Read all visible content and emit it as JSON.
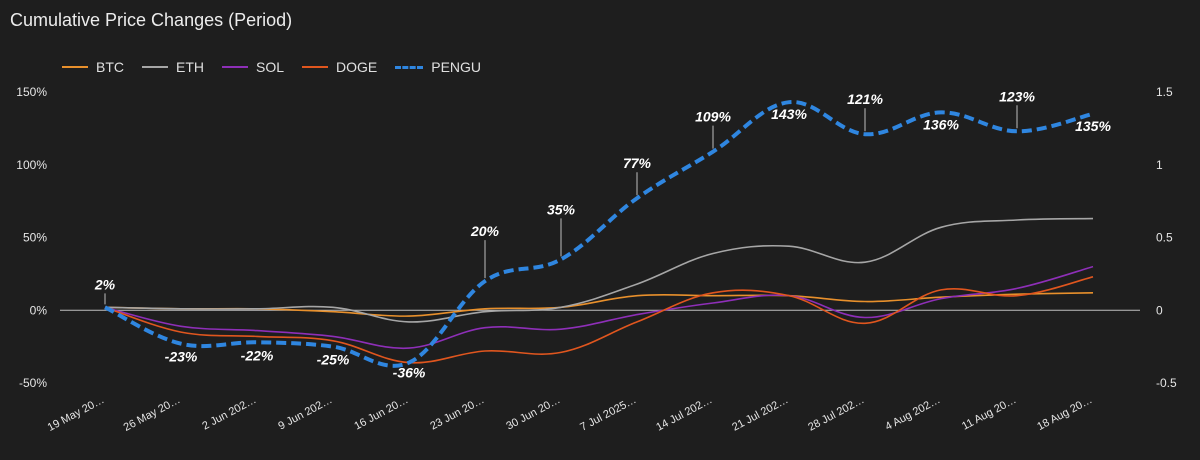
{
  "chart_data": {
    "type": "line",
    "title": "Cumulative Price Changes (Period)",
    "categories": [
      "19 May 20…",
      "26 May 20…",
      "2 Jun 202…",
      "9 Jun 202…",
      "16 Jun 20…",
      "23 Jun 20…",
      "30 Jun 20…",
      "7 Jul 2025…",
      "14 Jul 202…",
      "21 Jul 202…",
      "28 Jul 202…",
      "4 Aug 202…",
      "11 Aug 20…",
      "18 Aug 20…"
    ],
    "ylim": [
      -50,
      150
    ],
    "yticks": [
      "150%",
      "100%",
      "50%",
      "0%",
      "-50%"
    ],
    "y2lim": [
      -0.5,
      1.5
    ],
    "y2ticks": [
      "1.5",
      "1",
      "0.5",
      "0",
      "-0.5"
    ],
    "legend_position": "top-left",
    "series": [
      {
        "name": "BTC",
        "color": "#e8902c",
        "dashed": false,
        "values": [
          2,
          1,
          1,
          -1,
          -4,
          1,
          2,
          10,
          10,
          10,
          6,
          9,
          11,
          12
        ]
      },
      {
        "name": "ETH",
        "color": "#a6a6a6",
        "dashed": false,
        "values": [
          2,
          1,
          1,
          2,
          -8,
          -1,
          2,
          18,
          39,
          44,
          33,
          57,
          62,
          63
        ]
      },
      {
        "name": "SOL",
        "color": "#8e2fb8",
        "dashed": false,
        "values": [
          2,
          -11,
          -14,
          -18,
          -26,
          -12,
          -13,
          -3,
          5,
          10,
          -5,
          8,
          15,
          30
        ]
      },
      {
        "name": "DOGE",
        "color": "#e0561e",
        "dashed": false,
        "values": [
          2,
          -15,
          -18,
          -21,
          -36,
          -28,
          -29,
          -8,
          12,
          10,
          -9,
          14,
          10,
          23
        ]
      },
      {
        "name": "PENGU",
        "color": "#2f86e0",
        "dashed": true,
        "values": [
          2,
          -23,
          -22,
          -25,
          -36,
          20,
          35,
          77,
          109,
          143,
          121,
          136,
          123,
          135
        ]
      }
    ],
    "data_labels": [
      "2%",
      "-23%",
      "-22%",
      "-25%",
      "-36%",
      "20%",
      "35%",
      "77%",
      "109%",
      "143%",
      "121%",
      "136%",
      "123%",
      "135%"
    ]
  }
}
